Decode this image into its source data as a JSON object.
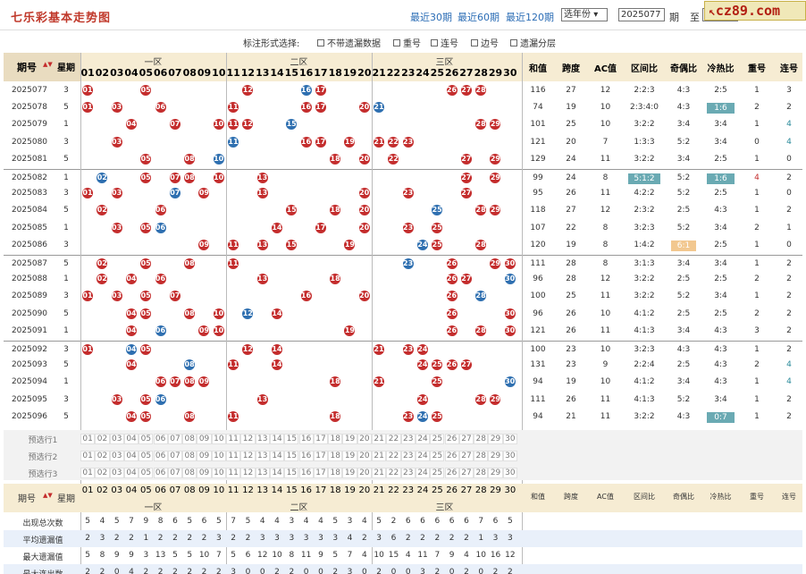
{
  "toolbar": {
    "title": "七乐彩基本走势图",
    "links": [
      "最近30期",
      "最近60期",
      "最近120期"
    ],
    "year_select": "选年份",
    "from_issue": "2025077",
    "from_label": "期",
    "to_label": "至",
    "to_issue": "2",
    "watermark": "cz89.com"
  },
  "filters": {
    "label": "标注形式选择:",
    "options": [
      "不带遗漏数据",
      "重号",
      "连号",
      "边号",
      "遗漏分层"
    ]
  },
  "colors": {
    "red": "#c42d2d",
    "blue": "#2e6fb0",
    "teal": "#6aaab3",
    "gold": "#f2c890"
  },
  "headers": {
    "issue": "期号",
    "weekday": "星期",
    "zones": [
      "一区",
      "二区",
      "三区"
    ],
    "numbers": [
      "01",
      "02",
      "03",
      "04",
      "05",
      "06",
      "07",
      "08",
      "09",
      "10",
      "11",
      "12",
      "13",
      "14",
      "15",
      "16",
      "17",
      "18",
      "19",
      "20",
      "21",
      "22",
      "23",
      "24",
      "25",
      "26",
      "27",
      "28",
      "29",
      "30"
    ],
    "stats": [
      "和值",
      "跨度",
      "AC值",
      "区间比",
      "奇偶比",
      "冷热比",
      "重号",
      "连号"
    ]
  },
  "draws": [
    {
      "issue": "2025077",
      "week": "3",
      "reds": [
        1,
        5,
        12,
        16,
        17,
        26,
        27,
        28
      ],
      "blue": [
        16
      ],
      "sum": "116",
      "span": "27",
      "ac": "12",
      "zone": "2:2:3",
      "oe": "4:3",
      "ch": "2:5",
      "rep": "1",
      "con": "3"
    },
    {
      "issue": "2025078",
      "week": "5",
      "reds": [
        1,
        3,
        6,
        11,
        16,
        17,
        20,
        21
      ],
      "blue": [
        21
      ],
      "sum": "74",
      "span": "19",
      "ac": "10",
      "zone": "2:3:4:0",
      "oe": "4:3",
      "ch": "1:6",
      "rep": "2",
      "con": "2"
    },
    {
      "issue": "2025079",
      "week": "1",
      "reds": [
        4,
        7,
        10,
        11,
        12,
        15,
        28,
        29
      ],
      "blue": [
        15
      ],
      "sum": "101",
      "span": "25",
      "ac": "10",
      "zone": "3:2:2",
      "oe": "3:4",
      "ch": "3:4",
      "rep": "1",
      "con": "4"
    },
    {
      "issue": "2025080",
      "week": "3",
      "reds": [
        3,
        11,
        16,
        17,
        19,
        21,
        22,
        23
      ],
      "blue": [
        11
      ],
      "sum": "121",
      "span": "20",
      "ac": "7",
      "zone": "1:3:3",
      "oe": "5:2",
      "ch": "3:4",
      "rep": "0",
      "con": "4"
    },
    {
      "issue": "2025081",
      "week": "5",
      "reds": [
        5,
        8,
        10,
        18,
        20,
        22,
        27,
        29
      ],
      "blue": [
        10
      ],
      "sum": "129",
      "span": "24",
      "ac": "11",
      "zone": "3:2:2",
      "oe": "3:4",
      "ch": "2:5",
      "rep": "1",
      "con": "0"
    },
    {
      "issue": "2025082",
      "week": "1",
      "reds": [
        2,
        5,
        7,
        8,
        10,
        13,
        27,
        29
      ],
      "blue": [
        2
      ],
      "sum": "99",
      "span": "24",
      "ac": "8",
      "zone": "5:1:2",
      "oe": "5:2",
      "ch": "1:6",
      "rep": "4",
      "con": "2"
    },
    {
      "issue": "2025083",
      "week": "3",
      "reds": [
        1,
        3,
        7,
        9,
        13,
        20,
        23,
        27
      ],
      "blue": [
        7
      ],
      "sum": "95",
      "span": "26",
      "ac": "11",
      "zone": "4:2:2",
      "oe": "5:2",
      "ch": "2:5",
      "rep": "1",
      "con": "0"
    },
    {
      "issue": "2025084",
      "week": "5",
      "reds": [
        2,
        6,
        15,
        18,
        20,
        25,
        28,
        29
      ],
      "blue": [
        25
      ],
      "sum": "118",
      "span": "27",
      "ac": "12",
      "zone": "2:3:2",
      "oe": "2:5",
      "ch": "4:3",
      "rep": "1",
      "con": "2"
    },
    {
      "issue": "2025085",
      "week": "1",
      "reds": [
        3,
        5,
        6,
        14,
        17,
        20,
        23,
        25
      ],
      "blue": [
        6
      ],
      "sum": "107",
      "span": "22",
      "ac": "8",
      "zone": "3:2:3",
      "oe": "5:2",
      "ch": "3:4",
      "rep": "2",
      "con": "1"
    },
    {
      "issue": "2025086",
      "week": "3",
      "reds": [
        9,
        11,
        13,
        15,
        19,
        24,
        25,
        28
      ],
      "blue": [
        24
      ],
      "sum": "120",
      "span": "19",
      "ac": "8",
      "zone": "1:4:2",
      "oe": "6:1",
      "ch": "2:5",
      "rep": "1",
      "con": "0"
    },
    {
      "issue": "2025087",
      "week": "5",
      "reds": [
        2,
        5,
        8,
        11,
        23,
        26,
        29,
        30
      ],
      "blue": [
        23
      ],
      "sum": "111",
      "span": "28",
      "ac": "8",
      "zone": "3:1:3",
      "oe": "3:4",
      "ch": "3:4",
      "rep": "1",
      "con": "2"
    },
    {
      "issue": "2025088",
      "week": "1",
      "reds": [
        2,
        4,
        6,
        13,
        18,
        26,
        27,
        30
      ],
      "blue": [
        30
      ],
      "sum": "96",
      "span": "28",
      "ac": "12",
      "zone": "3:2:2",
      "oe": "2:5",
      "ch": "2:5",
      "rep": "2",
      "con": "2"
    },
    {
      "issue": "2025089",
      "week": "3",
      "reds": [
        1,
        3,
        5,
        7,
        16,
        20,
        26,
        28
      ],
      "blue": [
        28
      ],
      "sum": "100",
      "span": "25",
      "ac": "11",
      "zone": "3:2:2",
      "oe": "5:2",
      "ch": "3:4",
      "rep": "1",
      "con": "2"
    },
    {
      "issue": "2025090",
      "week": "5",
      "reds": [
        4,
        5,
        8,
        10,
        12,
        14,
        26,
        30
      ],
      "blue": [
        12
      ],
      "sum": "96",
      "span": "26",
      "ac": "10",
      "zone": "4:1:2",
      "oe": "2:5",
      "ch": "2:5",
      "rep": "2",
      "con": "2"
    },
    {
      "issue": "2025091",
      "week": "1",
      "reds": [
        4,
        6,
        9,
        10,
        19,
        26,
        28,
        30
      ],
      "blue": [
        6
      ],
      "sum": "121",
      "span": "26",
      "ac": "11",
      "zone": "4:1:3",
      "oe": "3:4",
      "ch": "4:3",
      "rep": "3",
      "con": "2"
    },
    {
      "issue": "2025092",
      "week": "3",
      "reds": [
        1,
        4,
        5,
        12,
        14,
        21,
        23,
        24
      ],
      "blue": [
        4
      ],
      "sum": "100",
      "span": "23",
      "ac": "10",
      "zone": "3:2:3",
      "oe": "4:3",
      "ch": "4:3",
      "rep": "1",
      "con": "2"
    },
    {
      "issue": "2025093",
      "week": "5",
      "reds": [
        4,
        8,
        11,
        14,
        24,
        25,
        26,
        27
      ],
      "blue": [
        8
      ],
      "sum": "131",
      "span": "23",
      "ac": "9",
      "zone": "2:2:4",
      "oe": "2:5",
      "ch": "4:3",
      "rep": "2",
      "con": "4"
    },
    {
      "issue": "2025094",
      "week": "1",
      "reds": [
        6,
        7,
        8,
        9,
        18,
        21,
        25,
        30
      ],
      "blue": [
        30
      ],
      "sum": "94",
      "span": "19",
      "ac": "10",
      "zone": "4:1:2",
      "oe": "3:4",
      "ch": "4:3",
      "rep": "1",
      "con": "4"
    },
    {
      "issue": "2025095",
      "week": "3",
      "reds": [
        3,
        5,
        6,
        13,
        24,
        28,
        29
      ],
      "blue": [
        6
      ],
      "sum": "111",
      "span": "26",
      "ac": "11",
      "zone": "4:1:3",
      "oe": "5:2",
      "ch": "3:4",
      "rep": "1",
      "con": "2"
    },
    {
      "issue": "2025096",
      "week": "5",
      "reds": [
        4,
        5,
        8,
        11,
        18,
        23,
        24,
        25
      ],
      "blue": [
        24
      ],
      "sum": "94",
      "span": "21",
      "ac": "11",
      "zone": "3:2:2",
      "oe": "4:3",
      "ch": "0:7",
      "rep": "1",
      "con": "2"
    }
  ],
  "highlights": [
    {
      "row": 1,
      "col": "ch",
      "text": "1:6",
      "style": "teal"
    },
    {
      "row": 5,
      "col": "zone",
      "text": "5:1:2",
      "style": "teal"
    },
    {
      "row": 5,
      "col": "ch",
      "text": "1:6",
      "style": "teal"
    },
    {
      "row": 9,
      "col": "oe",
      "text": "6:1",
      "style": "gold"
    },
    {
      "row": 19,
      "col": "ch",
      "text": "0:7",
      "style": "teal"
    }
  ],
  "preselect": [
    "预选行1",
    "预选行2",
    "预选行3"
  ],
  "summary": [
    {
      "label": "出现总次数",
      "values": [
        "5",
        "4",
        "5",
        "7",
        "9",
        "8",
        "6",
        "5",
        "6",
        "5",
        "7",
        "5",
        "4",
        "4",
        "3",
        "4",
        "4",
        "5",
        "3",
        "4",
        "5",
        "2",
        "6",
        "6",
        "6",
        "6",
        "6",
        "7",
        "6",
        "5"
      ]
    },
    {
      "label": "平均遗漏值",
      "values": [
        "2",
        "3",
        "2",
        "2",
        "1",
        "2",
        "2",
        "2",
        "2",
        "3",
        "2",
        "2",
        "3",
        "3",
        "3",
        "3",
        "3",
        "3",
        "4",
        "2",
        "3",
        "6",
        "2",
        "2",
        "2",
        "2",
        "2",
        "1",
        "3",
        "3"
      ]
    },
    {
      "label": "最大遗漏值",
      "values": [
        "5",
        "8",
        "9",
        "9",
        "3",
        "13",
        "5",
        "5",
        "10",
        "7",
        "5",
        "6",
        "12",
        "10",
        "8",
        "11",
        "9",
        "5",
        "7",
        "4",
        "10",
        "15",
        "4",
        "11",
        "7",
        "9",
        "4",
        "10",
        "16",
        "12"
      ]
    },
    {
      "label": "最大连出数",
      "values": [
        "2",
        "2",
        "0",
        "4",
        "2",
        "2",
        "2",
        "2",
        "2",
        "2",
        "3",
        "0",
        "0",
        "2",
        "2",
        "0",
        "0",
        "2",
        "3",
        "0",
        "2",
        "0",
        "0",
        "3",
        "2",
        "0",
        "2",
        "0",
        "2",
        "2"
      ]
    }
  ]
}
